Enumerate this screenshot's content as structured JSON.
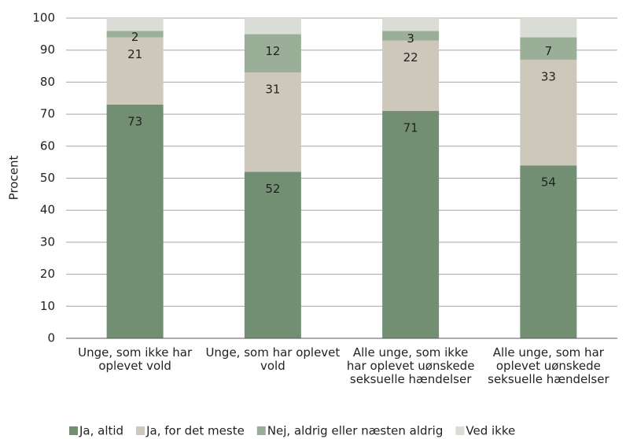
{
  "chart_data": {
    "type": "stacked_bar",
    "y_label": "Procent",
    "categories": [
      "Unge, som ikke har oplevet vold",
      "Unge, som har oplevet vold",
      "Alle unge, som ikke har oplevet uønskede seksuelle hændelser",
      "Alle unge, som har oplevet uønskede seksuelle hændelser"
    ],
    "series": [
      {
        "name": "Ja, altid",
        "color": "#728f74",
        "values": [
          73,
          52,
          71,
          54
        ],
        "data_labels": true
      },
      {
        "name": "Ja, for det meste",
        "color": "#cdc8bb",
        "values": [
          21,
          31,
          22,
          33
        ],
        "data_labels": true
      },
      {
        "name": "Nej, aldrig eller næsten aldrig",
        "color": "#9aae98",
        "values": [
          2,
          12,
          3,
          7
        ],
        "data_labels": true
      },
      {
        "name": "Ved ikke",
        "color": "#d9ddd5",
        "values": [
          4,
          5,
          4,
          6
        ],
        "data_labels": false
      }
    ],
    "ylim": [
      0,
      100
    ],
    "yticks": [
      0,
      10,
      20,
      30,
      40,
      50,
      60,
      70,
      80,
      90,
      100
    ],
    "grid": true,
    "legend": "bottom"
  }
}
